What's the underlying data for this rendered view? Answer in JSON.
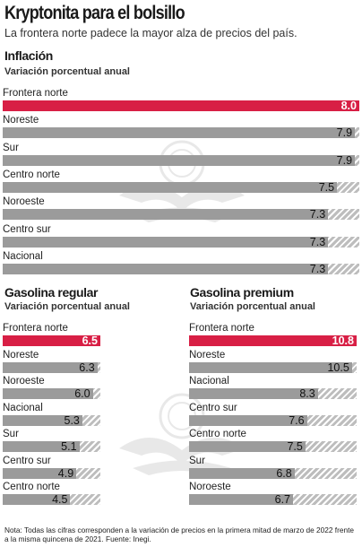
{
  "header": {
    "title": "Kryptonita para el bolsillo",
    "subtitle": "La frontera norte padece la mayor alza de precios del país."
  },
  "colors": {
    "highlight": "#d81f45",
    "bar": "#9b9b9b",
    "stripe": "#bdbdbd"
  },
  "chart_data": [
    {
      "type": "bar",
      "orientation": "horizontal",
      "title": "Inflación",
      "subtitle": "Variación porcentual anual",
      "categories": [
        "Frontera norte",
        "Noreste",
        "Sur",
        "Centro norte",
        "Noroeste",
        "Centro sur",
        "Nacional"
      ],
      "values": [
        8.0,
        7.9,
        7.9,
        7.5,
        7.3,
        7.3,
        7.3
      ],
      "value_labels": [
        "8.0",
        "7.9",
        "7.9",
        "7.5",
        "7.3",
        "7.3",
        "7.3"
      ],
      "highlight_index": 0,
      "xlim": [
        0,
        8.0
      ]
    },
    {
      "type": "bar",
      "orientation": "horizontal",
      "title": "Gasolina regular",
      "subtitle": "Variación porcentual anual",
      "categories": [
        "Frontera norte",
        "Noreste",
        "Noroeste",
        "Nacional",
        "Sur",
        "Centro sur",
        "Centro norte"
      ],
      "values": [
        6.5,
        6.3,
        6.0,
        5.3,
        5.1,
        4.9,
        4.5
      ],
      "value_labels": [
        "6.5",
        "6.3",
        "6.0",
        "5.3",
        "5.1",
        "4.9",
        "4.5"
      ],
      "highlight_index": 0,
      "xlim": [
        0,
        6.5
      ]
    },
    {
      "type": "bar",
      "orientation": "horizontal",
      "title": "Gasolina premium",
      "subtitle": "Variación porcentual anual",
      "categories": [
        "Frontera norte",
        "Noreste",
        "Nacional",
        "Centro sur",
        "Centro norte",
        "Sur",
        "Noroeste"
      ],
      "values": [
        10.8,
        10.5,
        8.3,
        7.6,
        7.5,
        6.8,
        6.7
      ],
      "value_labels": [
        "10.8",
        "10.5",
        "8.3",
        "7.6",
        "7.5",
        "6.8",
        "6.7"
      ],
      "highlight_index": 0,
      "xlim": [
        0,
        10.8
      ]
    }
  ],
  "footnote": "Nota: Todas las cifras corresponden a la variación de precios en la primera mitad de marzo de 2022 frente a la misma quincena de 2021. Fuente: Inegi.",
  "watermark_icon": "eagle-seal-icon"
}
